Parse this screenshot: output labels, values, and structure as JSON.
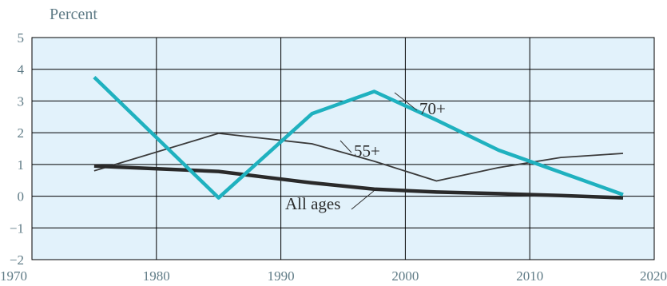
{
  "chart_data": {
    "type": "line",
    "title": "",
    "y_unit_label": "Percent",
    "xlabel": "",
    "ylabel": "",
    "xlim": [
      1970,
      2020
    ],
    "ylim": [
      -2,
      5
    ],
    "x_ticks": [
      1970,
      1980,
      1990,
      2000,
      2010,
      2020
    ],
    "y_ticks": [
      5,
      4,
      3,
      2,
      1,
      0,
      -1,
      -2
    ],
    "y_tick_labels": [
      "5",
      "4",
      "3",
      "2",
      "1",
      "0",
      "−1",
      "−2"
    ],
    "grid": true,
    "legend": "none (series labeled inline)",
    "background_color": "#e2f2fb",
    "grid_color": "#000000",
    "series": [
      {
        "name": "70+",
        "color": "#1fb1bf",
        "x": [
          1975,
          1985,
          1992.5,
          1997.5,
          2002.5,
          2007.5,
          2012.5,
          2017.5
        ],
        "y": [
          3.75,
          -0.05,
          2.6,
          3.3,
          2.4,
          1.45,
          0.75,
          0.05
        ]
      },
      {
        "name": "55+",
        "color": "#3a3a3a",
        "x": [
          1975,
          1985,
          1992.5,
          1997.5,
          2002.5,
          2007.5,
          2012.5,
          2017.5
        ],
        "y": [
          0.8,
          1.98,
          1.65,
          1.1,
          0.48,
          0.9,
          1.22,
          1.35
        ]
      },
      {
        "name": "All ages",
        "color": "#2a2a2a",
        "x": [
          1975,
          1985,
          1992.5,
          1997.5,
          2002.5,
          2007.5,
          2012.5,
          2017.5
        ],
        "y": [
          0.95,
          0.78,
          0.42,
          0.22,
          0.13,
          0.08,
          0.02,
          -0.05
        ]
      }
    ]
  }
}
